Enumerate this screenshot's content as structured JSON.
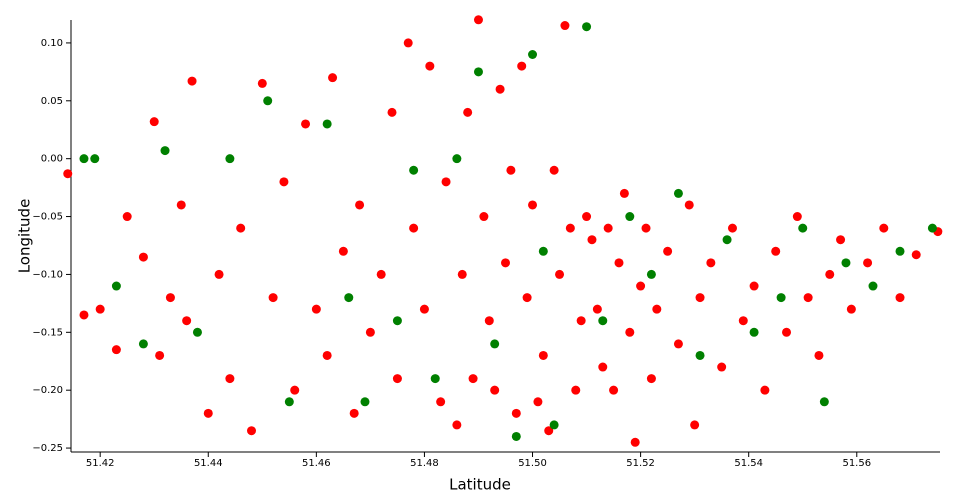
{
  "chart_data": {
    "type": "scatter",
    "x_label": "Latitude",
    "y_label": "Longitude",
    "xlim": [
      51.4146,
      51.5754
    ],
    "ylim": [
      -0.2534,
      0.1198
    ],
    "xticks": [
      51.42,
      51.44,
      51.46,
      51.48,
      {
        "value": 51.5,
        "label": "51.50"
      },
      51.52,
      51.54,
      51.56
    ],
    "yticks": [
      {
        "value": 0.1,
        "label": "0.10"
      },
      {
        "value": 0.05,
        "label": "0.05"
      },
      {
        "value": 0,
        "label": "0.00"
      },
      {
        "value": -0.05,
        "label": "−0.05"
      },
      {
        "value": -0.1,
        "label": "−0.10"
      },
      {
        "value": -0.15,
        "label": "−0.15"
      },
      {
        "value": -0.2,
        "label": "−0.20"
      },
      {
        "value": -0.25,
        "label": "−0.25"
      }
    ],
    "series": [
      {
        "color": "#ff0000",
        "x": [
          51.414,
          51.417,
          51.42,
          51.423,
          51.425,
          51.428,
          51.43,
          51.431,
          51.433,
          51.435,
          51.436,
          51.437,
          51.44,
          51.442,
          51.444,
          51.446,
          51.448,
          51.45,
          51.452,
          51.454,
          51.456,
          51.458,
          51.46,
          51.462,
          51.463,
          51.465,
          51.467,
          51.468,
          51.47,
          51.472,
          51.474,
          51.475,
          51.477,
          51.478,
          51.48,
          51.481,
          51.483,
          51.484,
          51.486,
          51.487,
          51.488,
          51.489,
          51.49,
          51.491,
          51.492,
          51.493,
          51.494,
          51.495,
          51.496,
          51.497,
          51.498,
          51.499,
          51.5,
          51.501,
          51.502,
          51.503,
          51.504,
          51.505,
          51.506,
          51.507,
          51.508,
          51.509,
          51.51,
          51.511,
          51.512,
          51.513,
          51.514,
          51.515,
          51.516,
          51.517,
          51.518,
          51.519,
          51.52,
          51.521,
          51.522,
          51.523,
          51.525,
          51.527,
          51.529,
          51.53,
          51.531,
          51.533,
          51.535,
          51.537,
          51.539,
          51.541,
          51.543,
          51.545,
          51.547,
          51.549,
          51.551,
          51.553,
          51.555,
          51.557,
          51.559,
          51.562,
          51.565,
          51.568,
          51.571,
          51.575
        ],
        "y": [
          -0.013,
          -0.135,
          -0.13,
          -0.165,
          -0.05,
          -0.085,
          0.032,
          -0.17,
          -0.12,
          -0.04,
          -0.14,
          0.067,
          -0.22,
          -0.1,
          -0.19,
          -0.06,
          -0.235,
          0.065,
          -0.12,
          -0.02,
          -0.2,
          0.03,
          -0.13,
          -0.17,
          0.07,
          -0.08,
          -0.22,
          -0.04,
          -0.15,
          -0.1,
          0.04,
          -0.19,
          0.1,
          -0.06,
          -0.13,
          0.08,
          -0.21,
          -0.02,
          -0.23,
          -0.1,
          0.04,
          -0.19,
          0.12,
          -0.05,
          -0.14,
          -0.2,
          0.06,
          -0.09,
          -0.01,
          -0.22,
          0.08,
          -0.12,
          -0.04,
          -0.21,
          -0.17,
          -0.235,
          -0.01,
          -0.1,
          0.115,
          -0.06,
          -0.2,
          -0.14,
          -0.05,
          -0.07,
          -0.13,
          -0.18,
          -0.06,
          -0.2,
          -0.09,
          -0.03,
          -0.15,
          -0.245,
          -0.11,
          -0.06,
          -0.19,
          -0.13,
          -0.08,
          -0.16,
          -0.04,
          -0.23,
          -0.12,
          -0.09,
          -0.18,
          -0.06,
          -0.14,
          -0.11,
          -0.2,
          -0.08,
          -0.15,
          -0.05,
          -0.12,
          -0.17,
          -0.1,
          -0.07,
          -0.13,
          -0.09,
          -0.06,
          -0.12,
          -0.083,
          -0.063
        ]
      },
      {
        "color": "#008000",
        "x": [
          51.417,
          51.419,
          51.423,
          51.428,
          51.432,
          51.438,
          51.444,
          51.451,
          51.455,
          51.462,
          51.466,
          51.469,
          51.475,
          51.478,
          51.482,
          51.486,
          51.49,
          51.493,
          51.497,
          51.5,
          51.502,
          51.504,
          51.51,
          51.513,
          51.518,
          51.522,
          51.527,
          51.531,
          51.536,
          51.541,
          51.546,
          51.55,
          51.554,
          51.558,
          51.563,
          51.568,
          51.574
        ],
        "y": [
          0.0,
          0.0,
          -0.11,
          -0.16,
          0.007,
          -0.15,
          0.0,
          0.05,
          -0.21,
          0.03,
          -0.12,
          -0.21,
          -0.14,
          -0.01,
          -0.19,
          0.0,
          0.075,
          -0.16,
          -0.24,
          0.09,
          -0.08,
          -0.23,
          0.114,
          -0.14,
          -0.05,
          -0.1,
          -0.03,
          -0.17,
          -0.07,
          -0.15,
          -0.12,
          -0.06,
          -0.21,
          -0.09,
          -0.11,
          -0.08,
          -0.06
        ]
      }
    ]
  }
}
